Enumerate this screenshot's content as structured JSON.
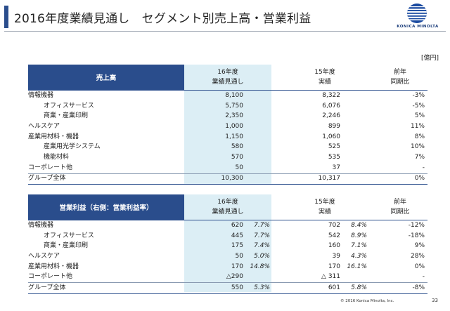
{
  "header": {
    "title": "2016年度業績見通し　セグメント別売上高・営業利益",
    "logo_text": "KONICA MINOLTA",
    "unit": "[億円]"
  },
  "sales": {
    "header_label": "売上高",
    "col16_line1": "16年度",
    "col16_line2": "業績見通し",
    "col15_line1": "15年度",
    "col15_line2": "実績",
    "colyoy_line1": "前年",
    "colyoy_line2": "同期比",
    "rows": [
      {
        "label": "情報機器",
        "v16": "8,100",
        "v15": "8,322",
        "yoy": "-3%"
      },
      {
        "label": "オフィスサービス",
        "v16": "5,750",
        "v15": "6,076",
        "yoy": "-5%"
      },
      {
        "label": "商業・産業印刷",
        "v16": "2,350",
        "v15": "2,246",
        "yoy": "5%"
      },
      {
        "label": "ヘルスケア",
        "v16": "1,000",
        "v15": "899",
        "yoy": "11%"
      },
      {
        "label": "産業用材料・機器",
        "v16": "1,150",
        "v15": "1,060",
        "yoy": "8%"
      },
      {
        "label": "産業用光学システム",
        "v16": "580",
        "v15": "525",
        "yoy": "10%"
      },
      {
        "label": "機能材料",
        "v16": "570",
        "v15": "535",
        "yoy": "7%"
      },
      {
        "label": "コーポレート他",
        "v16": "50",
        "v15": "37",
        "yoy": "-"
      },
      {
        "label": "グループ全体",
        "v16": "10,300",
        "v15": "10,317",
        "yoy": "0%"
      }
    ]
  },
  "op": {
    "header_label": "営業利益（右側：営業利益率）",
    "col16_line1": "16年度",
    "col16_line2": "業績見通し",
    "col15_line1": "15年度",
    "col15_line2": "実績",
    "colyoy_line1": "前年",
    "colyoy_line2": "同期比",
    "rows": [
      {
        "label": "情報機器",
        "v16": "620",
        "r16": "7.7%",
        "v15": "702",
        "r15": "8.4%",
        "yoy": "-12%"
      },
      {
        "label": "オフィスサービス",
        "v16": "445",
        "r16": "7.7%",
        "v15": "542",
        "r15": "8.9%",
        "yoy": "-18%"
      },
      {
        "label": "商業・産業印刷",
        "v16": "175",
        "r16": "7.4%",
        "v15": "160",
        "r15": "7.1%",
        "yoy": "9%"
      },
      {
        "label": "ヘルスケア",
        "v16": "50",
        "r16": "5.0%",
        "v15": "39",
        "r15": "4.3%",
        "yoy": "28%"
      },
      {
        "label": "産業用材料・機器",
        "v16": "170",
        "r16": "14.8%",
        "v15": "170",
        "r15": "16.1%",
        "yoy": "0%"
      },
      {
        "label": "コーポレート他",
        "v16": "△290",
        "r16": "",
        "v15": "△ 311",
        "r15": "",
        "yoy": "-"
      },
      {
        "label": "グループ全体",
        "v16": "550",
        "r16": "5.3%",
        "v15": "601",
        "r15": "5.8%",
        "yoy": "-8%"
      }
    ]
  },
  "footer": {
    "copyright": "© 2016 Konica Minolta, Inc.",
    "page_number": "33"
  }
}
